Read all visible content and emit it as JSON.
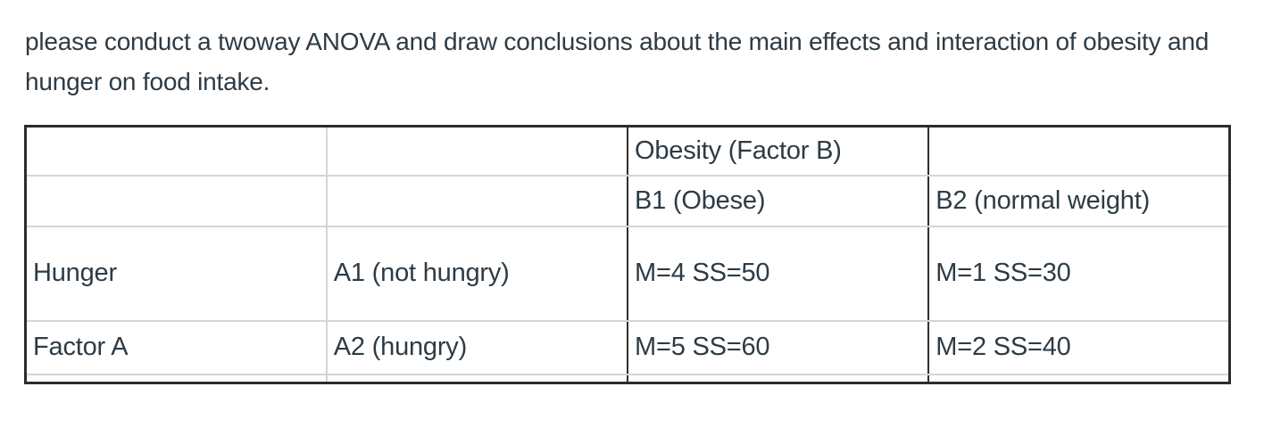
{
  "question": {
    "text": "please conduct a twoway ANOVA and draw conclusions about the main effects and interaction of obesity and hunger on food intake."
  },
  "table": {
    "rows": [
      [
        "",
        "",
        "Obesity (Factor B)",
        ""
      ],
      [
        "",
        "",
        "B1 (Obese)",
        "B2 (normal weight)"
      ],
      [
        "Hunger",
        "A1 (not hungry)",
        "M=4 SS=50",
        "M=1 SS=30"
      ],
      [
        "Factor A",
        "A2 (hungry)",
        "M=5 SS=60",
        "M=2 SS=40"
      ],
      [
        "",
        "",
        "",
        ""
      ]
    ]
  },
  "colors": {
    "text": "#2d3b45",
    "border_dark": "#2c2c2c",
    "border_light": "#d5d5d5",
    "background": "#ffffff"
  }
}
